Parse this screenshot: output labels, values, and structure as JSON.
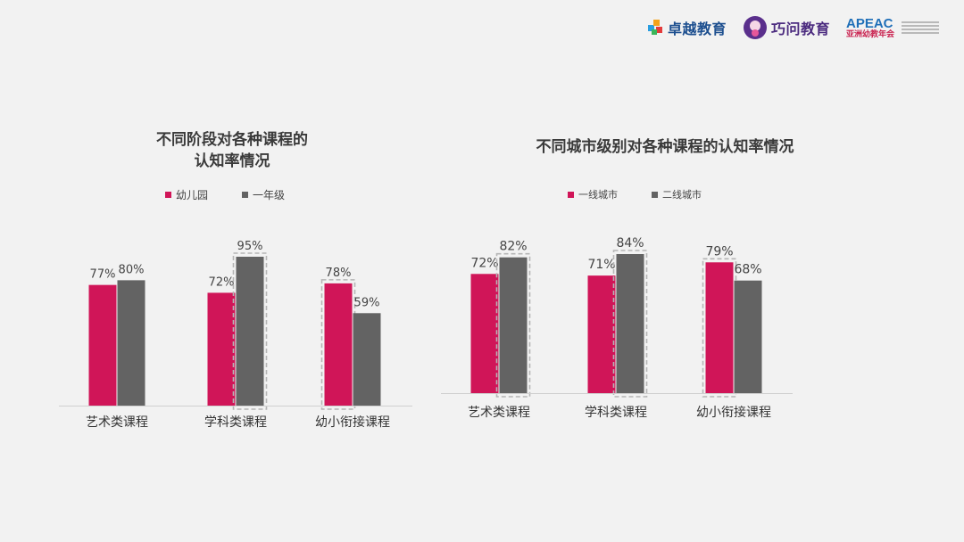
{
  "logos": {
    "logo1_text": "卓越教育",
    "logo2_text": "巧问教育",
    "logo3_text": "APEAC",
    "logo3_sub": "亚洲幼教年会"
  },
  "chart_data": [
    {
      "type": "bar",
      "title": "不同阶段对各种课程的认知率情况",
      "title_lines": [
        "不同阶段对各种课程的",
        "认知率情况"
      ],
      "categories": [
        "艺术类课程",
        "学科类课程",
        "幼小衔接课程"
      ],
      "series": [
        {
          "name": "幼儿园",
          "values": [
            77,
            72,
            78
          ],
          "labels": [
            "77%",
            "72%",
            "78%"
          ],
          "color": "#d01558"
        },
        {
          "name": "一年级",
          "values": [
            80,
            95,
            59
          ],
          "labels": [
            "80%",
            "95%",
            "59%"
          ],
          "color": "#636363"
        }
      ],
      "highlighted": [
        {
          "category": "学科类课程",
          "series": "一年级"
        },
        {
          "category": "幼小衔接课程",
          "series": "幼儿园"
        }
      ],
      "legend_position": "top",
      "grid": false,
      "unit": "%"
    },
    {
      "type": "bar",
      "title": "不同城市级别对各种课程的认知率情况",
      "categories": [
        "艺术类课程",
        "学科类课程",
        "幼小衔接课程"
      ],
      "series": [
        {
          "name": "一线城市",
          "values": [
            72,
            71,
            79
          ],
          "labels": [
            "72%",
            "71%",
            "79%"
          ],
          "color": "#d01558"
        },
        {
          "name": "二线城市",
          "values": [
            82,
            84,
            68
          ],
          "labels": [
            "82%",
            "84%",
            "68%"
          ],
          "color": "#636363"
        }
      ],
      "highlighted": [
        {
          "category": "艺术类课程",
          "series": "二线城市"
        },
        {
          "category": "学科类课程",
          "series": "二线城市"
        },
        {
          "category": "幼小衔接课程",
          "series": "一线城市"
        }
      ],
      "legend_position": "top",
      "grid": false,
      "unit": "%"
    }
  ]
}
